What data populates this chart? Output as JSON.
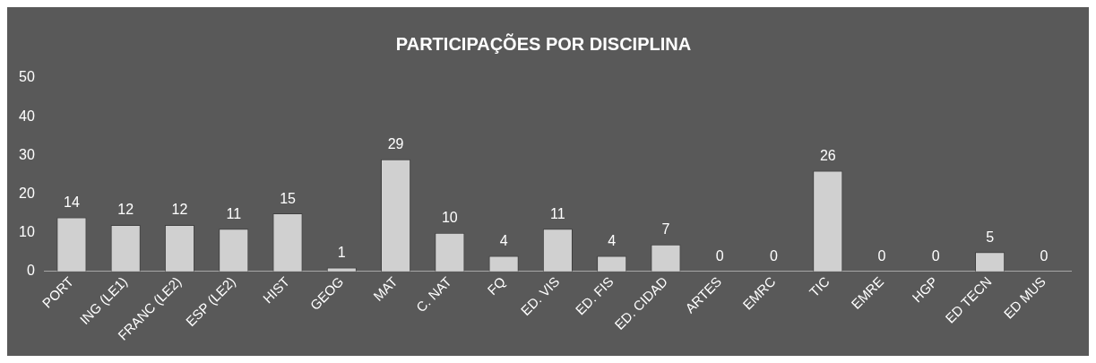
{
  "chart_data": {
    "type": "bar",
    "title": "PARTICIPAÇÕES POR DISCIPLINA",
    "categories": [
      "PORT",
      "ING (LE1)",
      "FRANC (LE2)",
      "ESP (LE2)",
      "HIST",
      "GEOG",
      "MAT",
      "C. NAT",
      "FQ",
      "ED. VIS",
      "ED. FIS",
      "ED. CIDAD",
      "ARTES",
      "EMRC",
      "TIC",
      "EMRE",
      "HGP",
      "ED TECN",
      "ED MUS"
    ],
    "values": [
      14,
      12,
      12,
      11,
      15,
      1,
      29,
      10,
      4,
      11,
      4,
      7,
      0,
      0,
      26,
      0,
      0,
      5,
      0
    ],
    "color": "#d0d0d0",
    "ylim": [
      0,
      50
    ],
    "yticks": [
      0,
      10,
      20,
      30,
      40,
      50
    ],
    "grid": false,
    "legend": false,
    "data_labels": true
  }
}
